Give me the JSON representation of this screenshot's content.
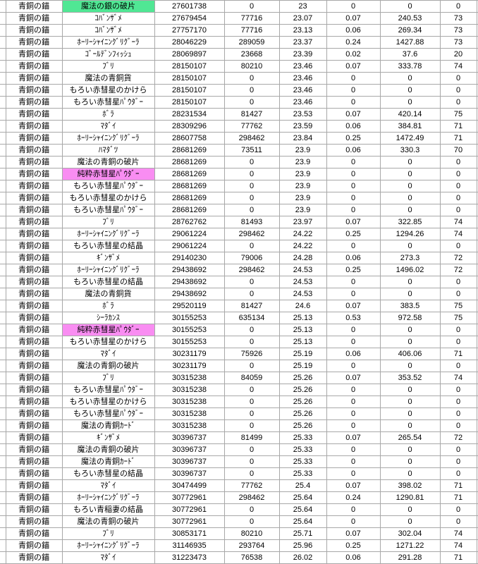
{
  "sheet": {
    "row_label": "青銅の錨",
    "colors": {
      "highlight_green": "#50e794",
      "highlight_pink": "#f98df2",
      "gridline": "#a8a8a8"
    },
    "rows": [
      {
        "item": "魔法の銀の破片",
        "highlight": "green",
        "v": [
          "27601738",
          "0",
          "23",
          "0",
          "0",
          "0"
        ]
      },
      {
        "item": "ｺﾊﾞﾝｻﾞﾒ",
        "highlight": "none",
        "v": [
          "27679454",
          "77716",
          "23.07",
          "0.07",
          "240.53",
          "73"
        ]
      },
      {
        "item": "ｺﾊﾞﾝｻﾞﾒ",
        "highlight": "none",
        "v": [
          "27757170",
          "77716",
          "23.13",
          "0.06",
          "269.34",
          "73"
        ]
      },
      {
        "item": "ﾎｰﾘｰｼｬｲﾆﾝｸﾞﾘｸﾞｰﾗ",
        "highlight": "none",
        "v": [
          "28046229",
          "289059",
          "23.37",
          "0.24",
          "1427.88",
          "73"
        ]
      },
      {
        "item": "ｺﾞｰﾙﾃﾞﾝﾌｨｯｼｭ",
        "highlight": "none",
        "v": [
          "28069897",
          "23668",
          "23.39",
          "0.02",
          "37.6",
          "20"
        ]
      },
      {
        "item": "ﾌﾞﾘ",
        "highlight": "none",
        "v": [
          "28150107",
          "80210",
          "23.46",
          "0.07",
          "333.78",
          "74"
        ]
      },
      {
        "item": "魔法の青銅貨",
        "highlight": "none",
        "v": [
          "28150107",
          "0",
          "23.46",
          "0",
          "0",
          "0"
        ]
      },
      {
        "item": "もろい赤彗星のかけら",
        "highlight": "none",
        "v": [
          "28150107",
          "0",
          "23.46",
          "0",
          "0",
          "0"
        ]
      },
      {
        "item": "もろい赤彗星ﾊﾟｳﾀﾞｰ",
        "highlight": "none",
        "v": [
          "28150107",
          "0",
          "23.46",
          "0",
          "0",
          "0"
        ]
      },
      {
        "item": "ﾎﾞﾗ",
        "highlight": "none",
        "v": [
          "28231534",
          "81427",
          "23.53",
          "0.07",
          "420.14",
          "75"
        ]
      },
      {
        "item": "ﾏﾀﾞｲ",
        "highlight": "none",
        "v": [
          "28309296",
          "77762",
          "23.59",
          "0.06",
          "384.81",
          "71"
        ]
      },
      {
        "item": "ﾎｰﾘｰｼｬｲﾆﾝｸﾞﾘｸﾞｰﾗ",
        "highlight": "none",
        "v": [
          "28607758",
          "298462",
          "23.84",
          "0.25",
          "1472.49",
          "71"
        ]
      },
      {
        "item": "ﾊﾏﾀﾞﾂ",
        "highlight": "none",
        "v": [
          "28681269",
          "73511",
          "23.9",
          "0.06",
          "330.3",
          "70"
        ]
      },
      {
        "item": "魔法の青銅の破片",
        "highlight": "none",
        "v": [
          "28681269",
          "0",
          "23.9",
          "0",
          "0",
          "0"
        ]
      },
      {
        "item": "純粋赤彗星ﾊﾟｳﾀﾞｰ",
        "highlight": "pink",
        "v": [
          "28681269",
          "0",
          "23.9",
          "0",
          "0",
          "0"
        ]
      },
      {
        "item": "もろい赤彗星ﾊﾟｳﾀﾞｰ",
        "highlight": "none",
        "v": [
          "28681269",
          "0",
          "23.9",
          "0",
          "0",
          "0"
        ]
      },
      {
        "item": "もろい赤彗星のかけら",
        "highlight": "none",
        "v": [
          "28681269",
          "0",
          "23.9",
          "0",
          "0",
          "0"
        ]
      },
      {
        "item": "もろい赤彗星ﾊﾟｳﾀﾞｰ",
        "highlight": "none",
        "v": [
          "28681269",
          "0",
          "23.9",
          "0",
          "0",
          "0"
        ]
      },
      {
        "item": "ﾌﾞﾘ",
        "highlight": "none",
        "v": [
          "28762762",
          "81493",
          "23.97",
          "0.07",
          "322.85",
          "74"
        ]
      },
      {
        "item": "ﾎｰﾘｰｼｬｲﾆﾝｸﾞﾘｸﾞｰﾗ",
        "highlight": "none",
        "v": [
          "29061224",
          "298462",
          "24.22",
          "0.25",
          "1294.26",
          "74"
        ]
      },
      {
        "item": "もろい赤彗星の結晶",
        "highlight": "none",
        "v": [
          "29061224",
          "0",
          "24.22",
          "0",
          "0",
          "0"
        ]
      },
      {
        "item": "ｷﾞﾝｻﾞﾒ",
        "highlight": "none",
        "v": [
          "29140230",
          "79006",
          "24.28",
          "0.06",
          "273.3",
          "72"
        ]
      },
      {
        "item": "ﾎｰﾘｰｼｬｲﾆﾝｸﾞﾘｸﾞｰﾗ",
        "highlight": "none",
        "v": [
          "29438692",
          "298462",
          "24.53",
          "0.25",
          "1496.02",
          "72"
        ]
      },
      {
        "item": "もろい赤彗星の結晶",
        "highlight": "none",
        "v": [
          "29438692",
          "0",
          "24.53",
          "0",
          "0",
          "0"
        ]
      },
      {
        "item": "魔法の青銅貨",
        "highlight": "none",
        "v": [
          "29438692",
          "0",
          "24.53",
          "0",
          "0",
          "0"
        ]
      },
      {
        "item": "ﾎﾞﾗ",
        "highlight": "none",
        "v": [
          "29520119",
          "81427",
          "24.6",
          "0.07",
          "383.5",
          "75"
        ]
      },
      {
        "item": "ｼｰﾗｶﾝｽ",
        "highlight": "none",
        "v": [
          "30155253",
          "635134",
          "25.13",
          "0.53",
          "972.58",
          "75"
        ]
      },
      {
        "item": "純粋赤彗星ﾊﾟｳﾀﾞｰ",
        "highlight": "pink",
        "v": [
          "30155253",
          "0",
          "25.13",
          "0",
          "0",
          "0"
        ]
      },
      {
        "item": "もろい赤彗星のかけら",
        "highlight": "none",
        "v": [
          "30155253",
          "0",
          "25.13",
          "0",
          "0",
          "0"
        ]
      },
      {
        "item": "ﾏﾀﾞｲ",
        "highlight": "none",
        "v": [
          "30231179",
          "75926",
          "25.19",
          "0.06",
          "406.06",
          "71"
        ]
      },
      {
        "item": "魔法の青銅の破片",
        "highlight": "none",
        "v": [
          "30231179",
          "0",
          "25.19",
          "0",
          "0",
          "0"
        ]
      },
      {
        "item": "ﾌﾞﾘ",
        "highlight": "none",
        "v": [
          "30315238",
          "84059",
          "25.26",
          "0.07",
          "353.52",
          "74"
        ]
      },
      {
        "item": "もろい赤彗星ﾊﾟｳﾀﾞｰ",
        "highlight": "none",
        "v": [
          "30315238",
          "0",
          "25.26",
          "0",
          "0",
          "0"
        ]
      },
      {
        "item": "もろい赤彗星のかけら",
        "highlight": "none",
        "v": [
          "30315238",
          "0",
          "25.26",
          "0",
          "0",
          "0"
        ]
      },
      {
        "item": "もろい赤彗星ﾊﾟｳﾀﾞｰ",
        "highlight": "none",
        "v": [
          "30315238",
          "0",
          "25.26",
          "0",
          "0",
          "0"
        ]
      },
      {
        "item": "魔法の青銅ｶｰﾄﾞ",
        "highlight": "none",
        "v": [
          "30315238",
          "0",
          "25.26",
          "0",
          "0",
          "0"
        ]
      },
      {
        "item": "ｷﾞﾝｻﾞﾒ",
        "highlight": "none",
        "v": [
          "30396737",
          "81499",
          "25.33",
          "0.07",
          "265.54",
          "72"
        ]
      },
      {
        "item": "魔法の青銅の破片",
        "highlight": "none",
        "v": [
          "30396737",
          "0",
          "25.33",
          "0",
          "0",
          "0"
        ]
      },
      {
        "item": "魔法の青銅ｶｰﾄﾞ",
        "highlight": "none",
        "v": [
          "30396737",
          "0",
          "25.33",
          "0",
          "0",
          "0"
        ]
      },
      {
        "item": "もろい赤彗星の結晶",
        "highlight": "none",
        "v": [
          "30396737",
          "0",
          "25.33",
          "0",
          "0",
          "0"
        ]
      },
      {
        "item": "ﾏﾀﾞｲ",
        "highlight": "none",
        "v": [
          "30474499",
          "77762",
          "25.4",
          "0.07",
          "398.02",
          "71"
        ]
      },
      {
        "item": "ﾎｰﾘｰｼｬｲﾆﾝｸﾞﾘｸﾞｰﾗ",
        "highlight": "none",
        "v": [
          "30772961",
          "298462",
          "25.64",
          "0.24",
          "1290.81",
          "71"
        ]
      },
      {
        "item": "もろい青稲妻の結晶",
        "highlight": "none",
        "v": [
          "30772961",
          "0",
          "25.64",
          "0",
          "0",
          "0"
        ]
      },
      {
        "item": "魔法の青銅の破片",
        "highlight": "none",
        "v": [
          "30772961",
          "0",
          "25.64",
          "0",
          "0",
          "0"
        ]
      },
      {
        "item": "ﾌﾞﾘ",
        "highlight": "none",
        "v": [
          "30853171",
          "80210",
          "25.71",
          "0.07",
          "302.04",
          "74"
        ]
      },
      {
        "item": "ﾎｰﾘｰｼｬｲﾆﾝｸﾞﾘｸﾞｰﾗ",
        "highlight": "none",
        "v": [
          "31146935",
          "293764",
          "25.96",
          "0.25",
          "1271.22",
          "74"
        ]
      },
      {
        "item": "ﾏﾀﾞｲ",
        "highlight": "none",
        "v": [
          "31223473",
          "76538",
          "26.02",
          "0.06",
          "291.28",
          "71"
        ]
      }
    ]
  }
}
